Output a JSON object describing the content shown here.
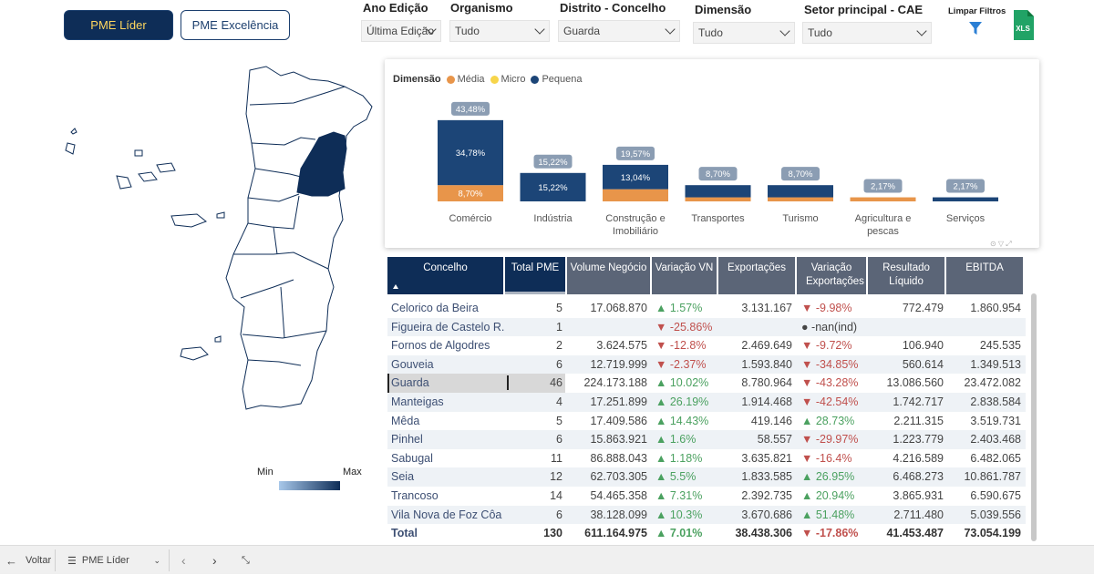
{
  "tabs": {
    "active": "PME Líder",
    "inactive": "PME Excelência"
  },
  "filters": [
    {
      "label": "Ano Edição",
      "value": "Última Edição"
    },
    {
      "label": "Organismo",
      "value": "Tudo"
    },
    {
      "label": "Distrito - Concelho",
      "value": "Guarda"
    },
    {
      "label": "Dimensão",
      "value": "Tudo"
    },
    {
      "label": "Setor principal - CAE",
      "value": "Tudo"
    }
  ],
  "clear_filters": {
    "label": "Limpar Filtros",
    "icon": "funnel-icon"
  },
  "export": {
    "label": "XLS",
    "icon": "excel-icon"
  },
  "map": {
    "legend_min": "Min",
    "legend_max": "Max",
    "colors": {
      "min": "#a8c8ea",
      "max": "#0e2d57"
    }
  },
  "chart_data": {
    "type": "bar",
    "legend_title": "Dimensão",
    "legend": [
      {
        "name": "Média",
        "color": "#e8954a"
      },
      {
        "name": "Micro",
        "color": "#f7d54a"
      },
      {
        "name": "Pequena",
        "color": "#1c4577"
      }
    ],
    "categories": [
      "Comércio",
      "Indústria",
      "Construção e Imobiliário",
      "Transportes",
      "Turismo",
      "Agricultura e pescas",
      "Serviços"
    ],
    "totals": [
      "43,48%",
      "15,22%",
      "19,57%",
      "8,70%",
      "8,70%",
      "2,17%",
      "2,17%"
    ],
    "series": [
      {
        "name": "Média",
        "values": [
          8.7,
          0,
          6.52,
          2.17,
          2.17,
          2.17,
          0
        ],
        "labels": [
          "8,70%",
          "",
          "",
          "",
          "",
          "",
          ""
        ]
      },
      {
        "name": "Pequena",
        "values": [
          34.78,
          15.22,
          13.04,
          6.52,
          6.52,
          0,
          2.17
        ],
        "labels": [
          "34,78%",
          "15,22%",
          "13,04%",
          "",
          "",
          "",
          ""
        ]
      }
    ]
  },
  "table": {
    "headers": [
      "Concelho",
      "Total PME",
      "Volume Negócio",
      "Variação VN",
      "Exportações",
      "Variação Exportações",
      "Resultado Líquido",
      "EBITDA"
    ],
    "rows": [
      {
        "name": "Celorico da Beira",
        "total": "5",
        "vol": "17.068.870",
        "varvn": "1.57%",
        "varvn_dir": "up",
        "exp": "3.131.167",
        "varexp": "-9.98%",
        "varexp_dir": "down",
        "res": "772.479",
        "ebitda": "1.860.954"
      },
      {
        "name": "Figueira de Castelo R...",
        "total": "1",
        "vol": "",
        "varvn": "-25.86%",
        "varvn_dir": "down",
        "exp": "",
        "varexp": "-nan(ind)",
        "varexp_dir": "dot",
        "res": "",
        "ebitda": ""
      },
      {
        "name": "Fornos de Algodres",
        "total": "2",
        "vol": "3.624.575",
        "varvn": "-12.8%",
        "varvn_dir": "down",
        "exp": "2.469.649",
        "varexp": "-9.72%",
        "varexp_dir": "down",
        "res": "106.940",
        "ebitda": "245.535"
      },
      {
        "name": "Gouveia",
        "total": "6",
        "vol": "12.719.999",
        "varvn": "-2.37%",
        "varvn_dir": "down",
        "exp": "1.593.840",
        "varexp": "-34.85%",
        "varexp_dir": "down",
        "res": "560.614",
        "ebitda": "1.349.513"
      },
      {
        "name": "Guarda",
        "total": "46",
        "vol": "224.173.188",
        "varvn": "10.02%",
        "varvn_dir": "up",
        "exp": "8.780.964",
        "varexp": "-43.28%",
        "varexp_dir": "down",
        "res": "13.086.560",
        "ebitda": "23.472.082"
      },
      {
        "name": "Manteigas",
        "total": "4",
        "vol": "17.251.899",
        "varvn": "26.19%",
        "varvn_dir": "up",
        "exp": "1.914.468",
        "varexp": "-42.54%",
        "varexp_dir": "down",
        "res": "1.742.717",
        "ebitda": "2.838.584"
      },
      {
        "name": "Mêda",
        "total": "5",
        "vol": "17.409.586",
        "varvn": "14.43%",
        "varvn_dir": "up",
        "exp": "419.146",
        "varexp": "28.73%",
        "varexp_dir": "up",
        "res": "2.211.315",
        "ebitda": "3.519.731"
      },
      {
        "name": "Pinhel",
        "total": "6",
        "vol": "15.863.921",
        "varvn": "1.6%",
        "varvn_dir": "up",
        "exp": "58.557",
        "varexp": "-29.97%",
        "varexp_dir": "down",
        "res": "1.223.779",
        "ebitda": "2.403.468"
      },
      {
        "name": "Sabugal",
        "total": "11",
        "vol": "86.888.043",
        "varvn": "1.18%",
        "varvn_dir": "up",
        "exp": "3.635.821",
        "varexp": "-16.4%",
        "varexp_dir": "down",
        "res": "4.216.589",
        "ebitda": "6.482.065"
      },
      {
        "name": "Seia",
        "total": "12",
        "vol": "62.703.305",
        "varvn": "5.5%",
        "varvn_dir": "up",
        "exp": "1.833.585",
        "varexp": "26.95%",
        "varexp_dir": "up",
        "res": "6.468.273",
        "ebitda": "10.861.787"
      },
      {
        "name": "Trancoso",
        "total": "14",
        "vol": "54.465.358",
        "varvn": "7.31%",
        "varvn_dir": "up",
        "exp": "2.392.735",
        "varexp": "20.94%",
        "varexp_dir": "up",
        "res": "3.865.931",
        "ebitda": "6.590.675"
      },
      {
        "name": "Vila Nova de Foz Côa",
        "total": "6",
        "vol": "38.128.099",
        "varvn": "10.3%",
        "varvn_dir": "up",
        "exp": "3.670.686",
        "varexp": "51.48%",
        "varexp_dir": "up",
        "res": "2.711.480",
        "ebitda": "5.039.556"
      }
    ],
    "total": {
      "name": "Total",
      "total": "130",
      "vol": "611.164.975",
      "varvn": "7.01%",
      "varvn_dir": "up",
      "exp": "38.438.306",
      "varexp": "-17.86%",
      "varexp_dir": "down",
      "res": "41.453.487",
      "ebitda": "73.054.199"
    },
    "selected_row": "Guarda"
  },
  "bottom_bar": {
    "back_label": "Voltar",
    "page_label": "PME Líder"
  }
}
